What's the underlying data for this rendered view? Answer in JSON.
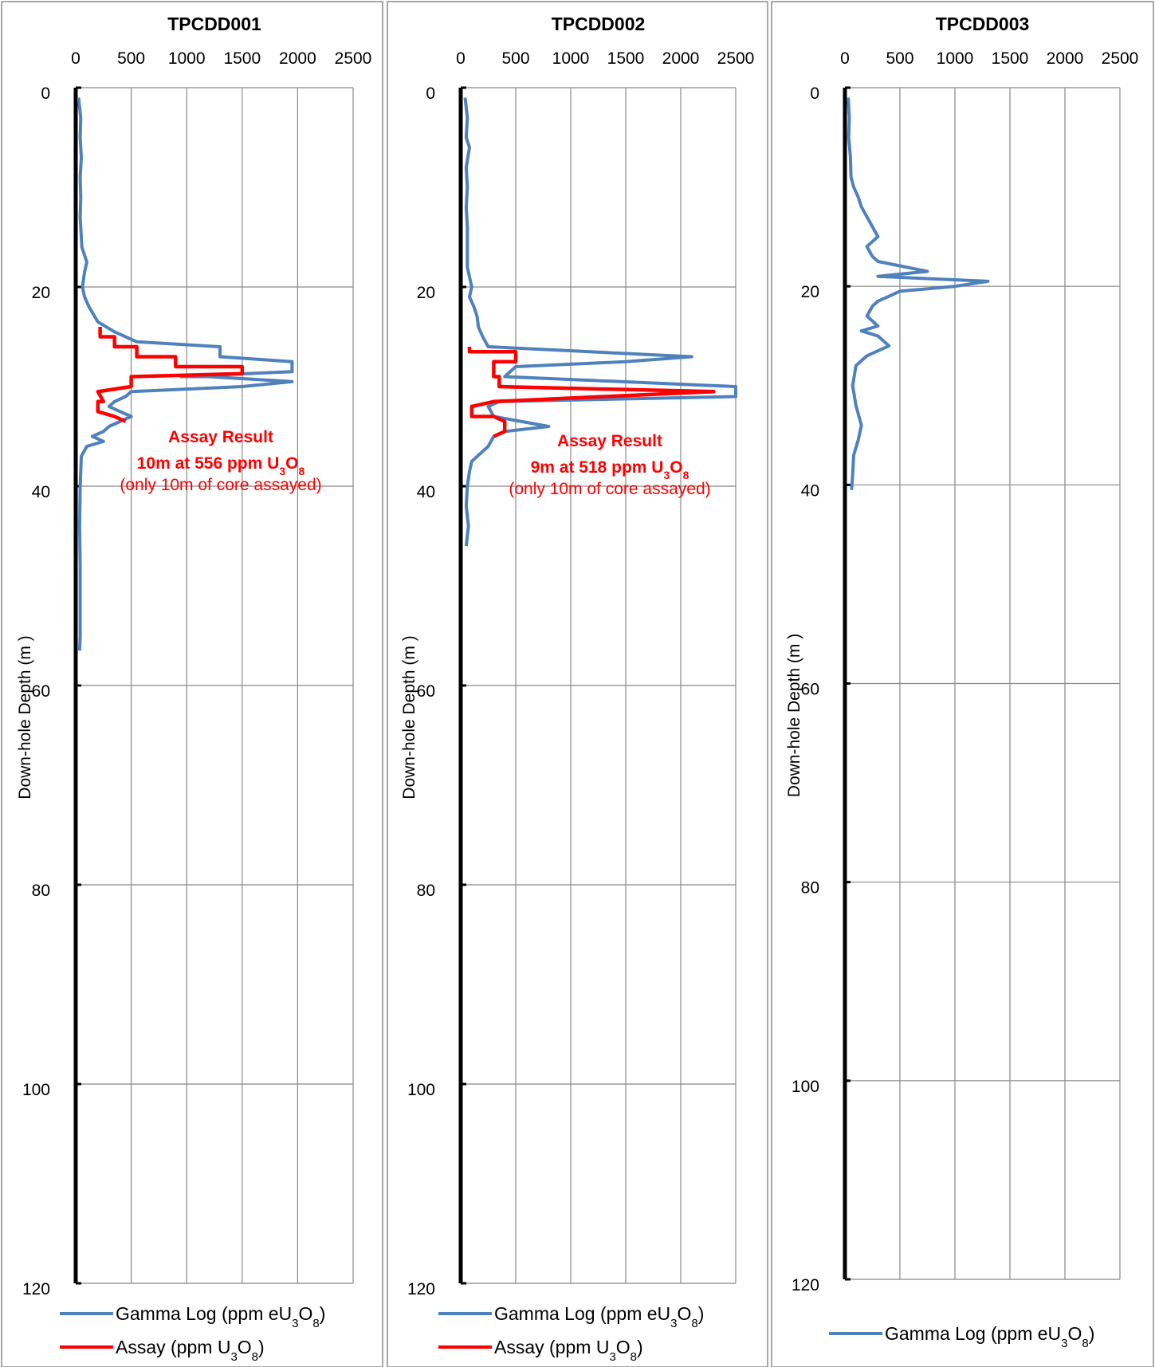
{
  "chart_data": [
    {
      "type": "line",
      "title": "TPCDD001",
      "ylabel": "Down-hole Depth (m )",
      "xlim": [
        0,
        2500
      ],
      "ylim": [
        0,
        120
      ],
      "x_ticks": [
        "0",
        "500",
        "1000",
        "1500",
        "2000",
        "2500"
      ],
      "y_ticks": [
        "0",
        "20",
        "40",
        "60",
        "80",
        "100",
        "120"
      ],
      "y_inverted": true,
      "x_axis_position": "top",
      "grid": true,
      "legend_position": "bottom",
      "series": [
        {
          "name_prefix": "Gamma Log (ppm eU",
          "name_sub1": "3",
          "name_mid": "O",
          "name_sub2": "8",
          "name_suffix": ")",
          "color": "#4F81BD",
          "points": [
            [
              25,
              1
            ],
            [
              45,
              3
            ],
            [
              40,
              5
            ],
            [
              50,
              7
            ],
            [
              40,
              9
            ],
            [
              45,
              11
            ],
            [
              40,
              13
            ],
            [
              50,
              15
            ],
            [
              55,
              16
            ],
            [
              100,
              17.5
            ],
            [
              80,
              18.5
            ],
            [
              60,
              20
            ],
            [
              80,
              21
            ],
            [
              120,
              22
            ],
            [
              200,
              23.5
            ],
            [
              350,
              24.5
            ],
            [
              550,
              25.5
            ],
            [
              1300,
              26
            ],
            [
              1300,
              27
            ],
            [
              1950,
              27.5
            ],
            [
              1950,
              28.5
            ],
            [
              950,
              29
            ],
            [
              1200,
              29
            ],
            [
              1950,
              29.5
            ],
            [
              1500,
              30
            ],
            [
              500,
              30.5
            ],
            [
              450,
              31
            ],
            [
              350,
              31.5
            ],
            [
              300,
              32
            ],
            [
              400,
              32.5
            ],
            [
              500,
              33
            ],
            [
              300,
              34
            ],
            [
              250,
              34.5
            ],
            [
              150,
              35
            ],
            [
              250,
              35.5
            ],
            [
              100,
              36
            ],
            [
              50,
              37
            ],
            [
              40,
              40
            ],
            [
              35,
              44
            ],
            [
              40,
              48
            ],
            [
              40,
              52
            ],
            [
              40,
              55
            ],
            [
              35,
              56.5
            ]
          ]
        },
        {
          "name_prefix": "Assay (ppm U",
          "name_sub1": "3",
          "name_mid": "O",
          "name_sub2": "8",
          "name_suffix": ")",
          "color": "#FF0000",
          "points": [
            [
              220,
              24
            ],
            [
              220,
              25
            ],
            [
              350,
              25
            ],
            [
              350,
              26
            ],
            [
              550,
              26
            ],
            [
              550,
              27
            ],
            [
              900,
              27
            ],
            [
              900,
              28
            ],
            [
              1500,
              28
            ],
            [
              1500,
              28.7
            ],
            [
              500,
              29
            ],
            [
              500,
              30
            ],
            [
              200,
              30.5
            ],
            [
              250,
              31.5
            ],
            [
              200,
              31.5
            ],
            [
              200,
              32.5
            ],
            [
              350,
              33
            ],
            [
              450,
              33.5
            ]
          ]
        }
      ],
      "annotation": {
        "title": "Assay Result",
        "value_prefix": "10m at 556 ppm U",
        "value_sub1": "3",
        "value_mid": "O",
        "value_sub2": "8",
        "note": "(only 10m of core assayed)"
      }
    },
    {
      "type": "line",
      "title": "TPCDD002",
      "ylabel": "Down-hole Depth (m )",
      "xlim": [
        0,
        2500
      ],
      "ylim": [
        0,
        120
      ],
      "x_ticks": [
        "0",
        "500",
        "1000",
        "1500",
        "2000",
        "2500"
      ],
      "y_ticks": [
        "0",
        "20",
        "40",
        "60",
        "80",
        "100",
        "120"
      ],
      "y_inverted": true,
      "x_axis_position": "top",
      "grid": true,
      "legend_position": "bottom",
      "series": [
        {
          "name_prefix": "Gamma Log (ppm eU",
          "name_sub1": "3",
          "name_mid": "O",
          "name_sub2": "8",
          "name_suffix": ")",
          "color": "#4F81BD",
          "points": [
            [
              40,
              1
            ],
            [
              60,
              3
            ],
            [
              50,
              5
            ],
            [
              80,
              6
            ],
            [
              50,
              8
            ],
            [
              60,
              10
            ],
            [
              50,
              12
            ],
            [
              60,
              14
            ],
            [
              60,
              16
            ],
            [
              60,
              18
            ],
            [
              100,
              20
            ],
            [
              80,
              21
            ],
            [
              120,
              22
            ],
            [
              150,
              23
            ],
            [
              160,
              24
            ],
            [
              200,
              25
            ],
            [
              250,
              26
            ],
            [
              2100,
              27
            ],
            [
              1500,
              27.5
            ],
            [
              500,
              28
            ],
            [
              400,
              29
            ],
            [
              2500,
              30
            ],
            [
              2500,
              31
            ],
            [
              350,
              31.5
            ],
            [
              250,
              32
            ],
            [
              300,
              33
            ],
            [
              800,
              34
            ],
            [
              400,
              34.5
            ],
            [
              300,
              35
            ],
            [
              250,
              36
            ],
            [
              100,
              37.5
            ],
            [
              80,
              38.5
            ],
            [
              60,
              40
            ],
            [
              50,
              42
            ],
            [
              70,
              44
            ],
            [
              50,
              46
            ]
          ]
        },
        {
          "name_prefix": "Assay (ppm U",
          "name_sub1": "3",
          "name_mid": "O",
          "name_sub2": "8",
          "name_suffix": ")",
          "color": "#FF0000",
          "points": [
            [
              80,
              26
            ],
            [
              80,
              26.5
            ],
            [
              500,
              26.5
            ],
            [
              500,
              27.5
            ],
            [
              300,
              27.5
            ],
            [
              300,
              29
            ],
            [
              350,
              29
            ],
            [
              350,
              30
            ],
            [
              2300,
              30.5
            ],
            [
              300,
              31.5
            ],
            [
              100,
              32
            ],
            [
              100,
              33
            ],
            [
              300,
              33
            ],
            [
              400,
              33.5
            ],
            [
              400,
              34.5
            ],
            [
              300,
              35
            ]
          ]
        }
      ],
      "annotation": {
        "title": "Assay Result",
        "value_prefix": "9m at 518 ppm U",
        "value_sub1": "3",
        "value_mid": "O",
        "value_sub2": "8",
        "note": "(only 10m of core assayed)"
      }
    },
    {
      "type": "line",
      "title": "TPCDD003",
      "ylabel": "Down-hole Depth (m )",
      "xlim": [
        0,
        2500
      ],
      "ylim": [
        0,
        120
      ],
      "x_ticks": [
        "0",
        "500",
        "1000",
        "1500",
        "2000",
        "2500"
      ],
      "y_ticks": [
        "0",
        "20",
        "40",
        "60",
        "80",
        "100",
        "120"
      ],
      "y_inverted": true,
      "x_axis_position": "top",
      "grid": true,
      "legend_position": "bottom",
      "series": [
        {
          "name_prefix": "Gamma Log (ppm eU",
          "name_sub1": "3",
          "name_mid": "O",
          "name_sub2": "8",
          "name_suffix": ")",
          "color": "#4F81BD",
          "points": [
            [
              30,
              1
            ],
            [
              40,
              3
            ],
            [
              35,
              5
            ],
            [
              50,
              7
            ],
            [
              55,
              9
            ],
            [
              80,
              10
            ],
            [
              120,
              11
            ],
            [
              150,
              12
            ],
            [
              200,
              13
            ],
            [
              250,
              14
            ],
            [
              300,
              15
            ],
            [
              200,
              16
            ],
            [
              250,
              17
            ],
            [
              300,
              17.5
            ],
            [
              750,
              18.5
            ],
            [
              300,
              19
            ],
            [
              1300,
              19.5
            ],
            [
              1000,
              20
            ],
            [
              500,
              20.5
            ],
            [
              300,
              21.5
            ],
            [
              250,
              22
            ],
            [
              200,
              23
            ],
            [
              300,
              24
            ],
            [
              150,
              24.5
            ],
            [
              300,
              25
            ],
            [
              400,
              26
            ],
            [
              200,
              27
            ],
            [
              100,
              28
            ],
            [
              70,
              30
            ],
            [
              100,
              32
            ],
            [
              150,
              34
            ],
            [
              120,
              35.5
            ],
            [
              80,
              37
            ],
            [
              70,
              39
            ],
            [
              60,
              40.5
            ]
          ]
        }
      ]
    }
  ]
}
